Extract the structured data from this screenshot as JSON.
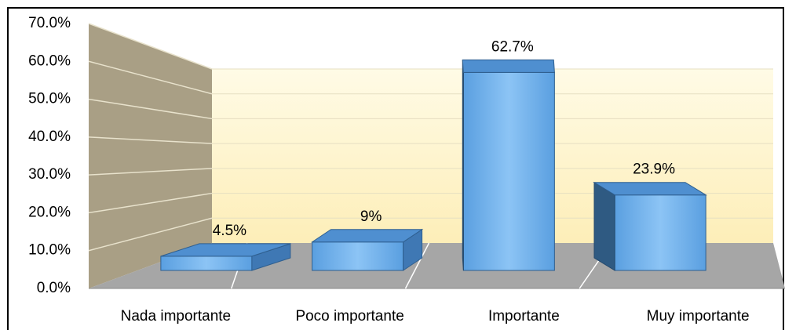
{
  "chart_data": {
    "type": "bar3d",
    "categories": [
      "Nada importante",
      "Poco importante",
      "Importante",
      "Muy importante"
    ],
    "values": [
      4.5,
      9,
      62.7,
      23.9
    ],
    "value_labels": [
      "4.5%",
      "9%",
      "62.7%",
      "23.9%"
    ],
    "color": "#6aaee8",
    "ylim": [
      0,
      70
    ],
    "yticks": [
      {
        "value": 0,
        "label": "0.0%"
      },
      {
        "value": 10,
        "label": "10.0%"
      },
      {
        "value": 20,
        "label": "20.0%"
      },
      {
        "value": 30,
        "label": "30.0%"
      },
      {
        "value": 40,
        "label": "40.0%"
      },
      {
        "value": 50,
        "label": "50.0%"
      },
      {
        "value": 60,
        "label": "60.0%"
      },
      {
        "value": 70,
        "label": "70.0%"
      }
    ],
    "grid": true
  }
}
